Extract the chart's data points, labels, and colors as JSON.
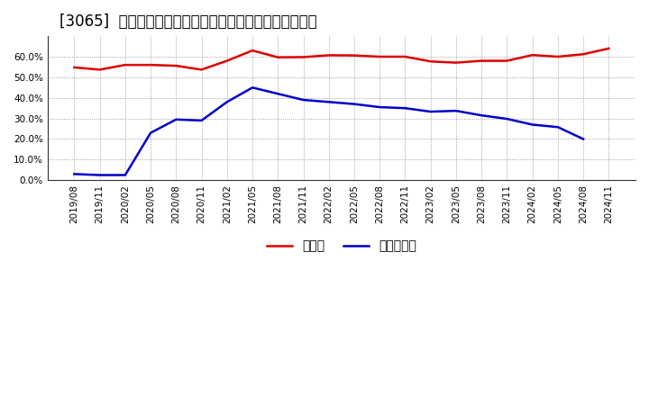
{
  "title": "[3065]  現頲金、有利子負債の総資産に対する比率の推移",
  "ylim": [
    0.0,
    0.7
  ],
  "yticks": [
    0.0,
    0.1,
    0.2,
    0.3,
    0.4,
    0.5,
    0.6
  ],
  "background_color": "#ffffff",
  "plot_bg_color": "#ffffff",
  "grid_color": "#888888",
  "x_labels": [
    "2019/08",
    "2019/11",
    "2020/02",
    "2020/05",
    "2020/08",
    "2020/11",
    "2021/02",
    "2021/05",
    "2021/08",
    "2021/11",
    "2022/02",
    "2022/05",
    "2022/08",
    "2022/11",
    "2023/02",
    "2023/05",
    "2023/08",
    "2023/11",
    "2024/02",
    "2024/05",
    "2024/08",
    "2024/11"
  ],
  "cash_values": [
    0.548,
    0.537,
    0.56,
    0.56,
    0.556,
    0.537,
    0.58,
    0.63,
    0.597,
    0.598,
    0.607,
    0.606,
    0.6,
    0.6,
    0.577,
    0.571,
    0.58,
    0.58,
    0.608,
    0.6,
    0.612,
    0.64
  ],
  "debt_values": [
    0.03,
    0.025,
    0.025,
    0.23,
    0.295,
    0.29,
    0.38,
    0.45,
    0.42,
    0.39,
    0.38,
    0.37,
    0.355,
    0.35,
    0.333,
    0.337,
    0.315,
    0.298,
    0.27,
    0.258,
    0.2,
    null
  ],
  "cash_color": "#dd0000",
  "debt_color": "#0000cc",
  "cash_label": "現頲金",
  "debt_label": "有利子負債",
  "line_width": 1.8,
  "title_fontsize": 12,
  "tick_fontsize": 7.5,
  "legend_fontsize": 10
}
